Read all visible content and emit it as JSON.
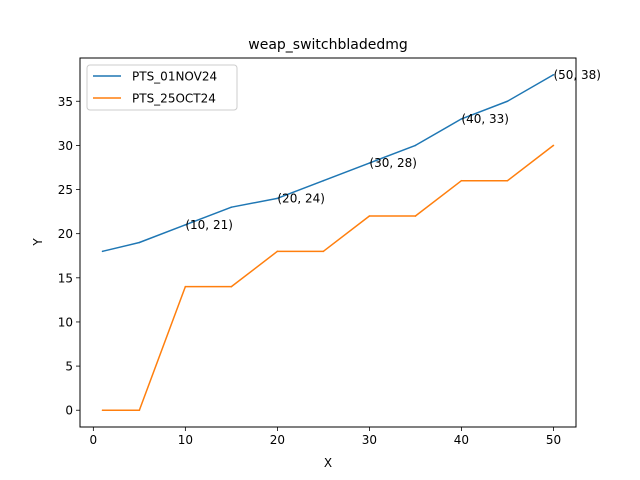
{
  "chart_data": {
    "type": "line",
    "title": "weap_switchbladedmg",
    "xlabel": "X",
    "ylabel": "Y",
    "xlim": [
      -1.45,
      52.45
    ],
    "ylim": [
      -1.9,
      39.9
    ],
    "xticks": [
      0,
      10,
      20,
      30,
      40,
      50
    ],
    "yticks": [
      0,
      5,
      10,
      15,
      20,
      25,
      30,
      35
    ],
    "grid": false,
    "legend_position": "upper-left",
    "series": [
      {
        "name": "PTS_01NOV24",
        "color": "#1f77b4",
        "x": [
          1,
          5,
          10,
          15,
          20,
          25,
          30,
          35,
          40,
          45,
          50
        ],
        "y": [
          18,
          19,
          21,
          23,
          24,
          26,
          28,
          30,
          33,
          35,
          38
        ]
      },
      {
        "name": "PTS_25OCT24",
        "color": "#ff7f0e",
        "x": [
          1,
          5,
          10,
          15,
          20,
          25,
          30,
          35,
          40,
          45,
          50
        ],
        "y": [
          0,
          0,
          14,
          14,
          18,
          18,
          22,
          22,
          26,
          26,
          30
        ]
      }
    ],
    "annotations": [
      {
        "text": "(10, 21)",
        "x": 10,
        "y": 21
      },
      {
        "text": "(20, 24)",
        "x": 20,
        "y": 24
      },
      {
        "text": "(30, 28)",
        "x": 30,
        "y": 28
      },
      {
        "text": "(40, 33)",
        "x": 40,
        "y": 33
      },
      {
        "text": "(50, 38)",
        "x": 50,
        "y": 38
      }
    ]
  }
}
